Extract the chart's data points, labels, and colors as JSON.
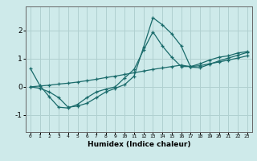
{
  "xlabel": "Humidex (Indice chaleur)",
  "bg_color": "#ceeaea",
  "grid_color": "#b0d0d0",
  "line_color": "#1a6b6b",
  "xlim": [
    -0.5,
    23.5
  ],
  "ylim": [
    -1.6,
    2.85
  ],
  "yticks": [
    -1,
    0,
    1,
    2
  ],
  "xticks": [
    0,
    1,
    2,
    3,
    4,
    5,
    6,
    7,
    8,
    9,
    10,
    11,
    12,
    13,
    14,
    15,
    16,
    17,
    18,
    19,
    20,
    21,
    22,
    23
  ],
  "series": [
    [
      0.65,
      0.05,
      -0.35,
      -0.72,
      -0.75,
      -0.62,
      -0.38,
      -0.18,
      -0.08,
      0.0,
      0.32,
      0.62,
      1.3,
      1.95,
      1.45,
      1.05,
      0.72,
      0.72,
      0.82,
      0.95,
      1.05,
      1.1,
      1.2,
      1.25
    ],
    [
      0.0,
      -0.05,
      -0.18,
      -0.38,
      -0.72,
      -0.68,
      -0.58,
      -0.38,
      -0.18,
      -0.05,
      0.08,
      0.38,
      1.4,
      2.45,
      2.2,
      1.88,
      1.45,
      0.7,
      0.68,
      0.8,
      0.92,
      1.02,
      1.12,
      1.22
    ],
    [
      0.0,
      0.03,
      0.06,
      0.1,
      0.13,
      0.17,
      0.22,
      0.27,
      0.33,
      0.38,
      0.44,
      0.5,
      0.56,
      0.62,
      0.67,
      0.72,
      0.77,
      0.72,
      0.75,
      0.82,
      0.88,
      0.95,
      1.02,
      1.1
    ]
  ]
}
